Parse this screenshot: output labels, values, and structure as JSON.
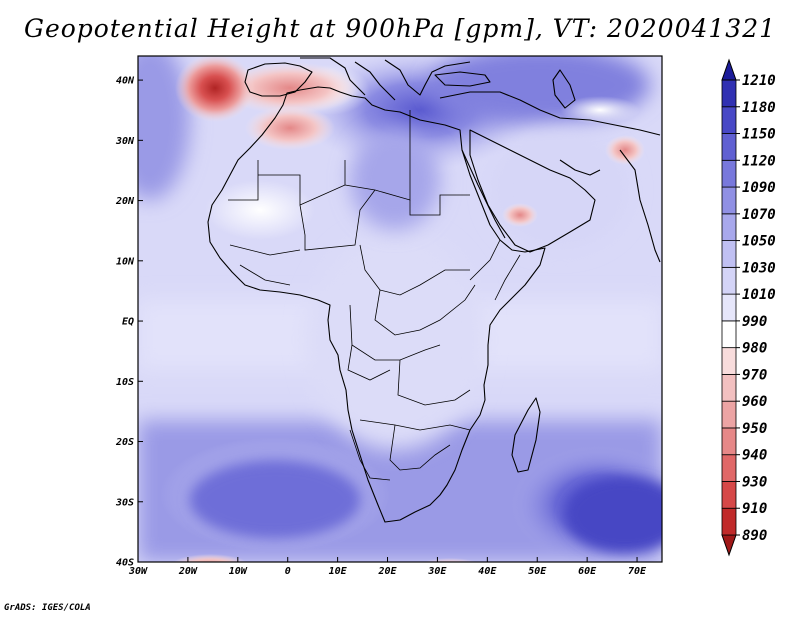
{
  "title": "Geopotential Height at 900hPa [gpm], VT: 2020041321",
  "credit": "GrADS: IGES/COLA",
  "chart_data": {
    "type": "heatmap",
    "variable": "Geopotential Height",
    "level": "900hPa",
    "units": "gpm",
    "valid_time": "2020041321",
    "x_axis": {
      "range": [
        -30,
        75
      ],
      "ticks": [
        {
          "value": -30,
          "label": "30W"
        },
        {
          "value": -20,
          "label": "20W"
        },
        {
          "value": -10,
          "label": "10W"
        },
        {
          "value": 0,
          "label": "0"
        },
        {
          "value": 10,
          "label": "10E"
        },
        {
          "value": 20,
          "label": "20E"
        },
        {
          "value": 30,
          "label": "30E"
        },
        {
          "value": 40,
          "label": "40E"
        },
        {
          "value": 50,
          "label": "50E"
        },
        {
          "value": 60,
          "label": "60E"
        },
        {
          "value": 70,
          "label": "70E"
        }
      ]
    },
    "y_axis": {
      "range": [
        -40,
        44
      ],
      "ticks": [
        {
          "value": 40,
          "label": "40N"
        },
        {
          "value": 30,
          "label": "30N"
        },
        {
          "value": 20,
          "label": "20N"
        },
        {
          "value": 10,
          "label": "10N"
        },
        {
          "value": 0,
          "label": "EQ"
        },
        {
          "value": -10,
          "label": "10S"
        },
        {
          "value": -20,
          "label": "20S"
        },
        {
          "value": -30,
          "label": "30S"
        },
        {
          "value": -40,
          "label": "40S"
        }
      ]
    },
    "colorbar": {
      "levels": [
        890,
        910,
        930,
        940,
        950,
        960,
        970,
        980,
        990,
        1010,
        1030,
        1050,
        1070,
        1090,
        1120,
        1150,
        1180,
        1210
      ],
      "colors": [
        "#a01818",
        "#c02a2a",
        "#d64848",
        "#e06868",
        "#e68888",
        "#eca4a4",
        "#f2c0c0",
        "#f8dcdc",
        "#ffffff",
        "#e6e6fa",
        "#d4d4f7",
        "#c0c0f2",
        "#a8a8ec",
        "#9090e4",
        "#7878dc",
        "#6060d2",
        "#4848c6",
        "#3030b2",
        "#1c1c9a"
      ]
    },
    "features": [
      {
        "name": "High over central Europe/Mediterranean",
        "lon": 25,
        "lat": 38,
        "level": "high"
      },
      {
        "name": "Low west of Iberia",
        "lon": -15,
        "lat": 40,
        "level": "low"
      },
      {
        "name": "Low over Morocco",
        "lon": -3,
        "lat": 33,
        "level": "low"
      },
      {
        "name": "High off southwest Africa",
        "lon": 0,
        "lat": -28,
        "level": "high"
      },
      {
        "name": "High southern Indian Ocean",
        "lon": 70,
        "lat": -32,
        "level": "high"
      },
      {
        "name": "Low southern Atlantic",
        "lon": -13,
        "lat": -41,
        "level": "low"
      },
      {
        "name": "Low south of South Africa",
        "lon": 33,
        "lat": -41,
        "level": "low"
      }
    ]
  }
}
